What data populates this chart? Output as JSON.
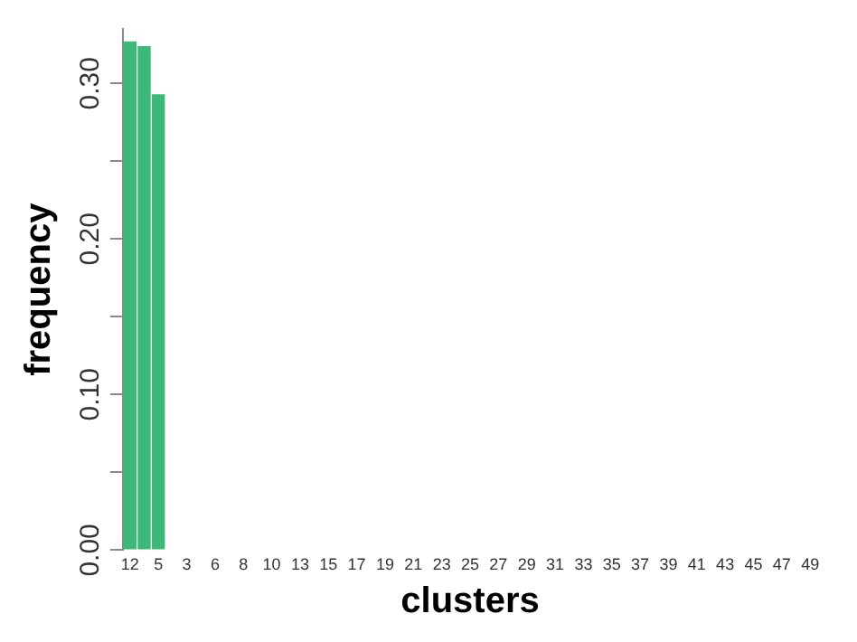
{
  "chart_data": {
    "type": "bar",
    "xlabel": "clusters",
    "ylabel": "frequency",
    "categories": [
      "12",
      null,
      "5",
      null,
      "3",
      null,
      "6",
      null,
      "8",
      null,
      "10",
      null,
      "13",
      null,
      "15",
      null,
      "17",
      null,
      "19",
      null,
      "21",
      null,
      "23",
      null,
      "25",
      null,
      "27",
      null,
      "29",
      null,
      "31",
      null,
      "33",
      null,
      "35",
      null,
      "37",
      null,
      "39",
      null,
      "41",
      null,
      "43",
      null,
      "45",
      null,
      "47",
      null,
      "49"
    ],
    "values": [
      0.327,
      0.324,
      0.293,
      0,
      0,
      0,
      0,
      0,
      0,
      0,
      0,
      0,
      0,
      0,
      0,
      0,
      0,
      0,
      0,
      0,
      0,
      0,
      0,
      0,
      0,
      0,
      0,
      0,
      0,
      0,
      0,
      0,
      0,
      0,
      0,
      0,
      0,
      0,
      0,
      0,
      0,
      0,
      0,
      0,
      0,
      0,
      0,
      0,
      0
    ],
    "color": "#3cb878",
    "ylim": [
      0,
      0.335
    ],
    "yticks": [
      {
        "value": 0,
        "label": "0.00"
      },
      {
        "value": 0.05,
        "label": null
      },
      {
        "value": 0.1,
        "label": "0.10"
      },
      {
        "value": 0.15,
        "label": null
      },
      {
        "value": 0.2,
        "label": "0.20"
      },
      {
        "value": 0.25,
        "label": null
      },
      {
        "value": 0.3,
        "label": "0.30"
      }
    ],
    "grid": false,
    "legend": false
  }
}
